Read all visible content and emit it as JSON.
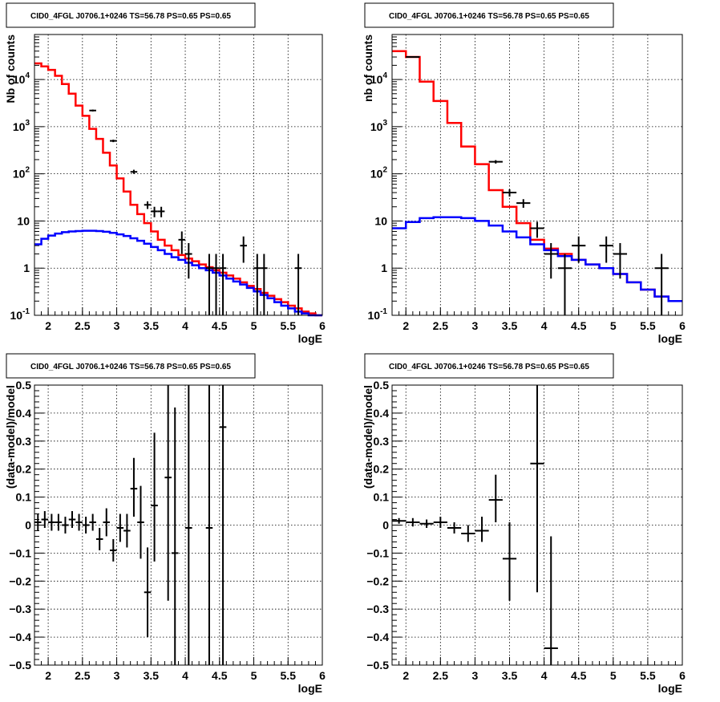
{
  "chart_data": [
    {
      "type": "line",
      "panel": "top-left",
      "title": "CID0_4FGL J0706.1+0246 TS=56.78 PS=0.65 PS=0.65",
      "xlabel": "logE",
      "ylabel": "Nb of counts",
      "xlim": [
        1.8,
        6.0
      ],
      "ylim": [
        0.1,
        90000
      ],
      "yscale": "log",
      "grid": true,
      "xticks": [
        "2",
        "2.5",
        "3",
        "3.5",
        "4",
        "4.5",
        "5",
        "5.5",
        "6"
      ],
      "series": [
        {
          "color": "#ff0000",
          "style": "step",
          "x": [
            1.8,
            1.9,
            2.0,
            2.1,
            2.2,
            2.3,
            2.4,
            2.5,
            2.6,
            2.7,
            2.8,
            2.9,
            3.0,
            3.1,
            3.2,
            3.3,
            3.4,
            3.5,
            3.6,
            3.7,
            3.8,
            3.9,
            4.0,
            4.1,
            4.2,
            4.3,
            4.4,
            4.5,
            4.6,
            4.7,
            4.8,
            4.9,
            5.0,
            5.1,
            5.2,
            5.3,
            5.4,
            5.5,
            5.6,
            5.7,
            5.8,
            5.9
          ],
          "values": [
            22000,
            19000,
            16000,
            12000,
            8000,
            5000,
            2800,
            1700,
            900,
            550,
            280,
            150,
            80,
            42,
            22,
            14,
            9,
            6,
            4,
            3,
            2.4,
            1.9,
            1.6,
            1.4,
            1.2,
            1.05,
            0.9,
            0.8,
            0.7,
            0.6,
            0.5,
            0.42,
            0.36,
            0.3,
            0.26,
            0.22,
            0.19,
            0.16,
            0.14,
            0.12,
            0.11,
            0.1
          ]
        },
        {
          "color": "#0000ff",
          "style": "step",
          "x": [
            1.8,
            1.9,
            2.0,
            2.1,
            2.2,
            2.3,
            2.4,
            2.5,
            2.6,
            2.7,
            2.8,
            2.9,
            3.0,
            3.1,
            3.2,
            3.3,
            3.4,
            3.5,
            3.6,
            3.7,
            3.8,
            3.9,
            4.0,
            4.1,
            4.2,
            4.3,
            4.4,
            4.5,
            4.6,
            4.7,
            4.8,
            4.9,
            5.0,
            5.1,
            5.2,
            5.3,
            5.4,
            5.5,
            5.6,
            5.7,
            5.8,
            5.9
          ],
          "values": [
            3.2,
            4.2,
            4.9,
            5.4,
            5.8,
            6.0,
            6.1,
            6.2,
            6.2,
            6.1,
            5.9,
            5.6,
            5.2,
            4.8,
            4.3,
            3.8,
            3.3,
            2.8,
            2.4,
            2.0,
            1.7,
            1.5,
            1.3,
            1.15,
            1.0,
            0.9,
            0.8,
            0.7,
            0.6,
            0.52,
            0.45,
            0.38,
            0.32,
            0.27,
            0.23,
            0.19,
            0.16,
            0.14,
            0.12,
            0.11,
            0.1,
            0.1
          ]
        }
      ],
      "points": [
        {
          "x": 2.65,
          "y": 2200,
          "xerr": 0.05,
          "ylo": 2100,
          "yhi": 2300
        },
        {
          "x": 2.95,
          "y": 500,
          "xerr": 0.05,
          "ylo": 470,
          "yhi": 530
        },
        {
          "x": 3.25,
          "y": 110,
          "xerr": 0.05,
          "ylo": 100,
          "yhi": 122
        },
        {
          "x": 3.45,
          "y": 22,
          "xerr": 0.05,
          "ylo": 18,
          "yhi": 26
        },
        {
          "x": 3.55,
          "y": 16,
          "xerr": 0.05,
          "ylo": 12,
          "yhi": 20
        },
        {
          "x": 3.65,
          "y": 16,
          "xerr": 0.05,
          "ylo": 12,
          "yhi": 20
        },
        {
          "x": 3.95,
          "y": 4,
          "xerr": 0.05,
          "ylo": 2,
          "yhi": 6
        },
        {
          "x": 4.05,
          "y": 2,
          "xerr": 0.05,
          "ylo": 0.6,
          "yhi": 3.4
        },
        {
          "x": 4.35,
          "y": 1,
          "xerr": 0.05,
          "ylo": 0.1,
          "yhi": 2
        },
        {
          "x": 4.45,
          "y": 1,
          "xerr": 0.05,
          "ylo": 0.1,
          "yhi": 2
        },
        {
          "x": 4.55,
          "y": 1,
          "xerr": 0.05,
          "ylo": 0.1,
          "yhi": 2
        },
        {
          "x": 4.85,
          "y": 3,
          "xerr": 0.05,
          "ylo": 1.3,
          "yhi": 4.7
        },
        {
          "x": 5.05,
          "y": 1,
          "xerr": 0.05,
          "ylo": 0.1,
          "yhi": 2
        },
        {
          "x": 5.15,
          "y": 1,
          "xerr": 0.05,
          "ylo": 0.1,
          "yhi": 2
        },
        {
          "x": 5.65,
          "y": 1,
          "xerr": 0.05,
          "ylo": 0.1,
          "yhi": 2
        }
      ]
    },
    {
      "type": "line",
      "panel": "top-right",
      "title": "CID0_4FGL J0706.1+0246 TS=56.78 PS=0.65 PS=0.65",
      "xlabel": "logE",
      "ylabel": "nb of counts",
      "xlim": [
        1.8,
        6.0
      ],
      "ylim": [
        0.1,
        90000
      ],
      "yscale": "log",
      "grid": true,
      "xticks": [
        "2",
        "2.5",
        "3",
        "3.5",
        "4",
        "4.5",
        "5",
        "5.5",
        "6"
      ],
      "series": [
        {
          "color": "#ff0000",
          "style": "step",
          "x": [
            1.8,
            2.0,
            2.2,
            2.4,
            2.6,
            2.8,
            3.0,
            3.2,
            3.4,
            3.6,
            3.8,
            4.0,
            4.2,
            4.4,
            4.6,
            4.8,
            5.0,
            5.2,
            5.4,
            5.6,
            5.8
          ],
          "values": [
            40000,
            30000,
            9000,
            3500,
            1200,
            380,
            160,
            45,
            20,
            9,
            4,
            2.6,
            2.0,
            1.5,
            1.2,
            1.0,
            0.75,
            0.5,
            0.35,
            0.25,
            0.2
          ]
        },
        {
          "color": "#0000ff",
          "style": "step",
          "x": [
            1.8,
            2.0,
            2.2,
            2.4,
            2.6,
            2.8,
            3.0,
            3.2,
            3.4,
            3.6,
            3.8,
            4.0,
            4.2,
            4.4,
            4.6,
            4.8,
            5.0,
            5.2,
            5.4,
            5.6,
            5.8
          ],
          "values": [
            7,
            9.5,
            11.5,
            12,
            12,
            11.5,
            10,
            8,
            6,
            4.5,
            3.2,
            2.4,
            1.8,
            1.5,
            1.2,
            1.0,
            0.75,
            0.5,
            0.35,
            0.25,
            0.2
          ]
        }
      ],
      "points": [
        {
          "x": 2.1,
          "y": 30000,
          "xerr": 0.1,
          "ylo": 29000,
          "yhi": 31000
        },
        {
          "x": 3.3,
          "y": 180,
          "xerr": 0.1,
          "ylo": 165,
          "yhi": 195
        },
        {
          "x": 3.5,
          "y": 40,
          "xerr": 0.1,
          "ylo": 33,
          "yhi": 47
        },
        {
          "x": 3.7,
          "y": 24,
          "xerr": 0.1,
          "ylo": 19,
          "yhi": 29
        },
        {
          "x": 3.9,
          "y": 7,
          "xerr": 0.1,
          "ylo": 4.4,
          "yhi": 9.6
        },
        {
          "x": 4.1,
          "y": 2,
          "xerr": 0.1,
          "ylo": 0.6,
          "yhi": 3.4
        },
        {
          "x": 4.3,
          "y": 1,
          "xerr": 0.1,
          "ylo": 0.1,
          "yhi": 2
        },
        {
          "x": 4.5,
          "y": 3,
          "xerr": 0.1,
          "ylo": 1.3,
          "yhi": 4.7
        },
        {
          "x": 4.9,
          "y": 3,
          "xerr": 0.1,
          "ylo": 1.3,
          "yhi": 4.7
        },
        {
          "x": 5.1,
          "y": 2,
          "xerr": 0.1,
          "ylo": 0.6,
          "yhi": 3.4
        },
        {
          "x": 5.7,
          "y": 1,
          "xerr": 0.1,
          "ylo": 0.1,
          "yhi": 2
        }
      ]
    },
    {
      "type": "scatter",
      "panel": "bottom-left",
      "title": "CID0_4FGL J0706.1+0246 TS=56.78 PS=0.65 PS=0.65",
      "xlabel": "logE",
      "ylabel": "(data-model)/model",
      "xlim": [
        1.8,
        6.0
      ],
      "ylim": [
        -0.5,
        0.5
      ],
      "grid": true,
      "xticks": [
        "2",
        "2.5",
        "3",
        "3.5",
        "4",
        "4.5",
        "5",
        "5.5",
        "6"
      ],
      "yticks": [
        "−0.5",
        "−0.4",
        "−0.3",
        "−0.2",
        "−0.1",
        "0",
        "0.1",
        "0.2",
        "0.3",
        "0.4",
        "0.5"
      ],
      "points": [
        {
          "x": 1.85,
          "y": 0.01,
          "xerr": 0.05,
          "ylo": -0.02,
          "yhi": 0.04
        },
        {
          "x": 1.95,
          "y": 0.02,
          "xerr": 0.05,
          "ylo": -0.01,
          "yhi": 0.05
        },
        {
          "x": 2.05,
          "y": 0.01,
          "xerr": 0.05,
          "ylo": -0.02,
          "yhi": 0.04
        },
        {
          "x": 2.15,
          "y": 0.01,
          "xerr": 0.05,
          "ylo": -0.02,
          "yhi": 0.04
        },
        {
          "x": 2.25,
          "y": 0.0,
          "xerr": 0.05,
          "ylo": -0.03,
          "yhi": 0.03
        },
        {
          "x": 2.35,
          "y": 0.02,
          "xerr": 0.05,
          "ylo": -0.01,
          "yhi": 0.05
        },
        {
          "x": 2.45,
          "y": 0.01,
          "xerr": 0.05,
          "ylo": -0.02,
          "yhi": 0.04
        },
        {
          "x": 2.55,
          "y": 0.0,
          "xerr": 0.05,
          "ylo": -0.03,
          "yhi": 0.03
        },
        {
          "x": 2.65,
          "y": 0.01,
          "xerr": 0.05,
          "ylo": -0.02,
          "yhi": 0.04
        },
        {
          "x": 2.75,
          "y": -0.05,
          "xerr": 0.05,
          "ylo": -0.09,
          "yhi": -0.01
        },
        {
          "x": 2.85,
          "y": 0.01,
          "xerr": 0.05,
          "ylo": -0.04,
          "yhi": 0.06
        },
        {
          "x": 2.95,
          "y": -0.09,
          "xerr": 0.05,
          "ylo": -0.13,
          "yhi": -0.05
        },
        {
          "x": 3.05,
          "y": -0.01,
          "xerr": 0.05,
          "ylo": -0.06,
          "yhi": 0.04
        },
        {
          "x": 3.15,
          "y": -0.02,
          "xerr": 0.05,
          "ylo": -0.08,
          "yhi": 0.04
        },
        {
          "x": 3.25,
          "y": 0.13,
          "xerr": 0.05,
          "ylo": 0.03,
          "yhi": 0.24
        },
        {
          "x": 3.35,
          "y": 0.01,
          "xerr": 0.05,
          "ylo": -0.12,
          "yhi": 0.14
        },
        {
          "x": 3.45,
          "y": -0.24,
          "xerr": 0.05,
          "ylo": -0.4,
          "yhi": -0.08
        },
        {
          "x": 3.55,
          "y": 0.07,
          "xerr": 0.05,
          "ylo": -0.13,
          "yhi": 0.33
        },
        {
          "x": 3.75,
          "y": 0.17,
          "xerr": 0.05,
          "ylo": -0.27,
          "yhi": 0.5
        },
        {
          "x": 3.85,
          "y": -0.1,
          "xerr": 0.05,
          "ylo": -0.5,
          "yhi": 0.42
        },
        {
          "x": 4.05,
          "y": -0.01,
          "xerr": 0.05,
          "ylo": -0.5,
          "yhi": 0.5
        },
        {
          "x": 4.35,
          "y": -0.01,
          "xerr": 0.05,
          "ylo": -0.5,
          "yhi": 0.5
        },
        {
          "x": 4.55,
          "y": 0.35,
          "xerr": 0.05,
          "ylo": -0.5,
          "yhi": 0.5
        }
      ]
    },
    {
      "type": "scatter",
      "panel": "bottom-right",
      "title": "CID0_4FGL J0706.1+0246 TS=56.78 PS=0.65 PS=0.65",
      "xlabel": "logE",
      "ylabel": "(data-model)/model",
      "xlim": [
        1.8,
        6.0
      ],
      "ylim": [
        -0.5,
        0.5
      ],
      "grid": true,
      "xticks": [
        "2",
        "2.5",
        "3",
        "3.5",
        "4",
        "4.5",
        "5",
        "5.5",
        "6"
      ],
      "yticks": [
        "−0.5",
        "−0.4",
        "−0.3",
        "−0.2",
        "−0.1",
        "0",
        "0.1",
        "0.2",
        "0.3",
        "0.4",
        "0.5"
      ],
      "points": [
        {
          "x": 1.9,
          "y": 0.015,
          "xerr": 0.1,
          "ylo": 0.005,
          "yhi": 0.025
        },
        {
          "x": 2.1,
          "y": 0.01,
          "xerr": 0.1,
          "ylo": -0.005,
          "yhi": 0.025
        },
        {
          "x": 2.3,
          "y": 0.005,
          "xerr": 0.1,
          "ylo": -0.01,
          "yhi": 0.02
        },
        {
          "x": 2.5,
          "y": 0.01,
          "xerr": 0.1,
          "ylo": -0.01,
          "yhi": 0.03
        },
        {
          "x": 2.7,
          "y": -0.01,
          "xerr": 0.1,
          "ylo": -0.03,
          "yhi": 0.01
        },
        {
          "x": 2.9,
          "y": -0.03,
          "xerr": 0.1,
          "ylo": -0.06,
          "yhi": 0.0
        },
        {
          "x": 3.1,
          "y": -0.02,
          "xerr": 0.1,
          "ylo": -0.06,
          "yhi": 0.03
        },
        {
          "x": 3.3,
          "y": 0.09,
          "xerr": 0.1,
          "ylo": 0.01,
          "yhi": 0.18
        },
        {
          "x": 3.5,
          "y": -0.12,
          "xerr": 0.1,
          "ylo": -0.27,
          "yhi": 0.01
        },
        {
          "x": 3.9,
          "y": 0.22,
          "xerr": 0.1,
          "ylo": -0.24,
          "yhi": 0.5
        },
        {
          "x": 4.1,
          "y": -0.44,
          "xerr": 0.1,
          "ylo": -0.5,
          "yhi": -0.04
        }
      ]
    }
  ]
}
